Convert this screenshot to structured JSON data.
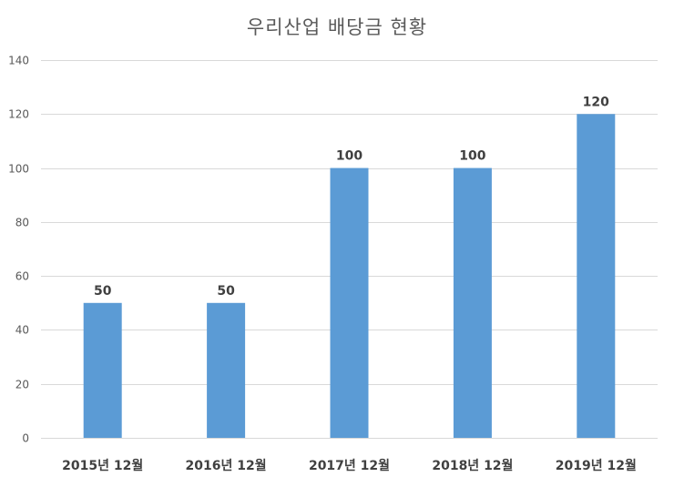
{
  "chart_data": {
    "type": "bar",
    "title": "우리산업 배당금 현황",
    "categories": [
      "2015년 12월",
      "2016년 12월",
      "2017년 12월",
      "2018년 12월",
      "2019년 12월"
    ],
    "values": [
      50,
      50,
      100,
      100,
      120
    ],
    "ylim": [
      0,
      140
    ],
    "yticks": [
      0,
      20,
      40,
      60,
      80,
      100,
      120,
      140
    ],
    "xlabel": "",
    "ylabel": "",
    "grid": true,
    "legend": "none",
    "data_labels": true,
    "bar_color": "#5b9bd5"
  }
}
